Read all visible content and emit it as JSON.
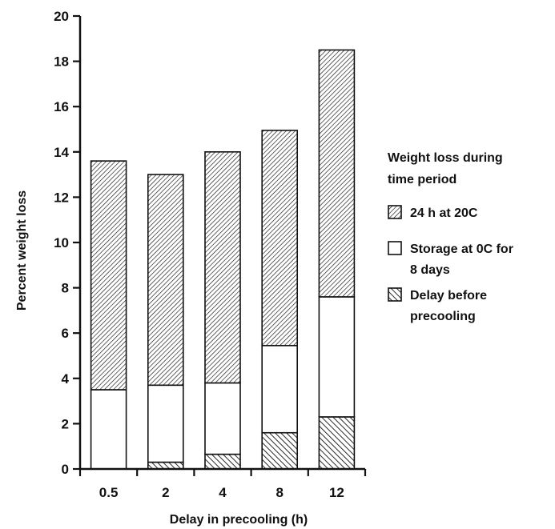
{
  "chart_data": {
    "type": "bar",
    "stacked": true,
    "categories": [
      "0.5",
      "2",
      "4",
      "8",
      "12"
    ],
    "series": [
      {
        "name": "Delay before precooling",
        "values": [
          0.0,
          0.3,
          0.65,
          1.6,
          2.3
        ],
        "pattern": "hatch-dense"
      },
      {
        "name": "Storage at 0C for 8 days",
        "values": [
          3.5,
          3.4,
          3.15,
          3.85,
          5.3
        ],
        "pattern": "white"
      },
      {
        "name": "24 h at 20C",
        "values": [
          10.1,
          9.3,
          10.2,
          9.5,
          10.9
        ],
        "pattern": "hatch-fine"
      }
    ],
    "xlabel": "Delay in precooling (h)",
    "ylabel": "Percent weight loss",
    "ylim": [
      0,
      20
    ],
    "yticks": [
      "0",
      "2",
      "4",
      "6",
      "8",
      "10",
      "12",
      "14",
      "16",
      "18",
      "20"
    ],
    "legend": {
      "title": [
        "Weight loss during",
        "time period"
      ],
      "items": [
        {
          "series": "24 h at 20C",
          "lines": [
            "24 h at 20C"
          ]
        },
        {
          "series": "Storage at 0C for 8 days",
          "lines": [
            "Storage at 0C for",
            "8 days"
          ]
        },
        {
          "series": "Delay before precooling",
          "lines": [
            "Delay before",
            "precooling"
          ]
        }
      ],
      "position": "right"
    },
    "grid": false,
    "colors": {
      "ink": "#111111",
      "background": "#ffffff"
    }
  }
}
